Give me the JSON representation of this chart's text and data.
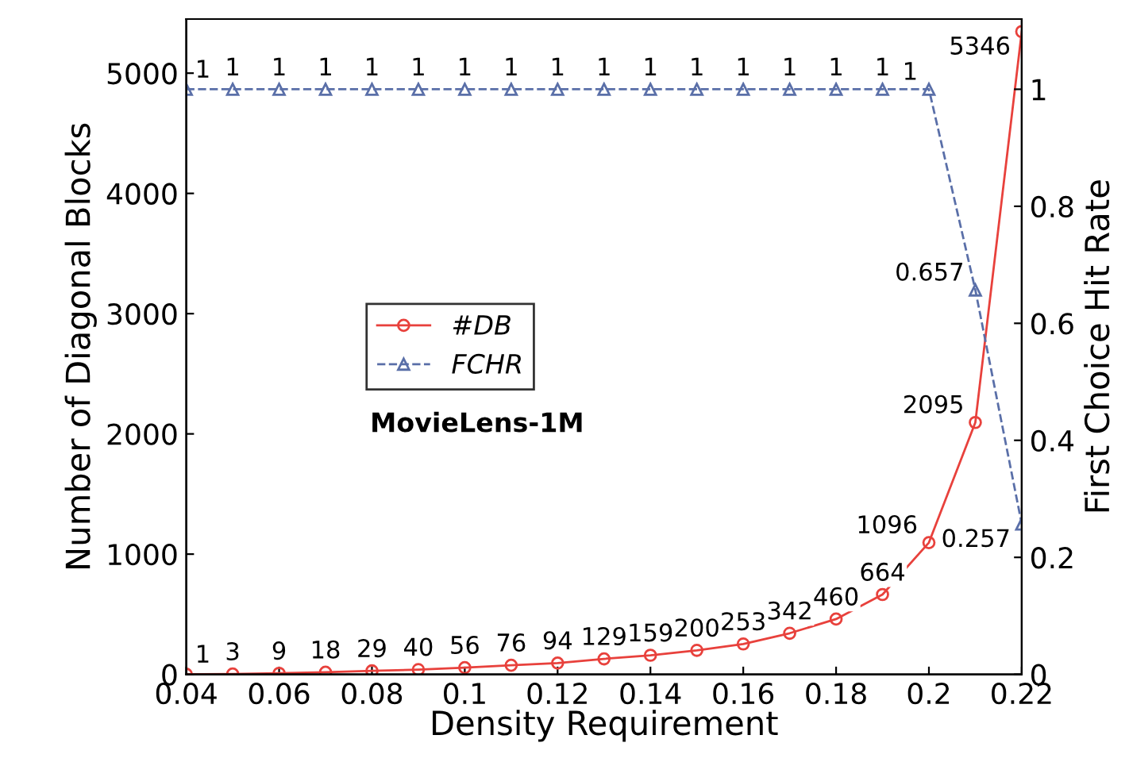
{
  "chart_data": {
    "type": "line",
    "xlabel": "Density Requirement",
    "ylabel": "Number of Diagonal Blocks",
    "y2label": "First Choice Hit Rate",
    "x": [
      0.04,
      0.05,
      0.06,
      0.07,
      0.08,
      0.09,
      0.1,
      0.11,
      0.12,
      0.13,
      0.14,
      0.15,
      0.16,
      0.17,
      0.18,
      0.19,
      0.2,
      0.21,
      0.22
    ],
    "series": [
      {
        "name": "#DB",
        "color": "#e8413c",
        "marker": "circle",
        "line_style": "solid",
        "values": [
          1,
          3,
          9,
          18,
          29,
          40,
          56,
          76,
          94,
          129,
          159,
          200,
          253,
          342,
          460,
          664,
          1096,
          2095,
          5346
        ]
      },
      {
        "name": "FCHR",
        "color": "#5a6fa8",
        "marker": "triangle",
        "line_style": "dashed",
        "axis": "y2",
        "values": [
          1,
          1,
          1,
          1,
          1,
          1,
          1,
          1,
          1,
          1,
          1,
          1,
          1,
          1,
          1,
          1,
          1,
          0.657,
          0.257
        ]
      }
    ],
    "data_labels": true,
    "annotations": [
      "MovieLens-1M"
    ],
    "xlim": [
      0.04,
      0.22
    ],
    "xticks": [
      0.04,
      0.06,
      0.08,
      0.1,
      0.12,
      0.14,
      0.16,
      0.18,
      0.2,
      0.22
    ],
    "ylim": [
      0,
      5450
    ],
    "yticks": [
      0,
      1000,
      2000,
      3000,
      4000,
      5000
    ],
    "y2lim": [
      0,
      1.12
    ],
    "y2ticks": [
      0,
      0.2,
      0.4,
      0.6,
      0.8,
      1
    ],
    "legend": "center left",
    "grid": false
  }
}
